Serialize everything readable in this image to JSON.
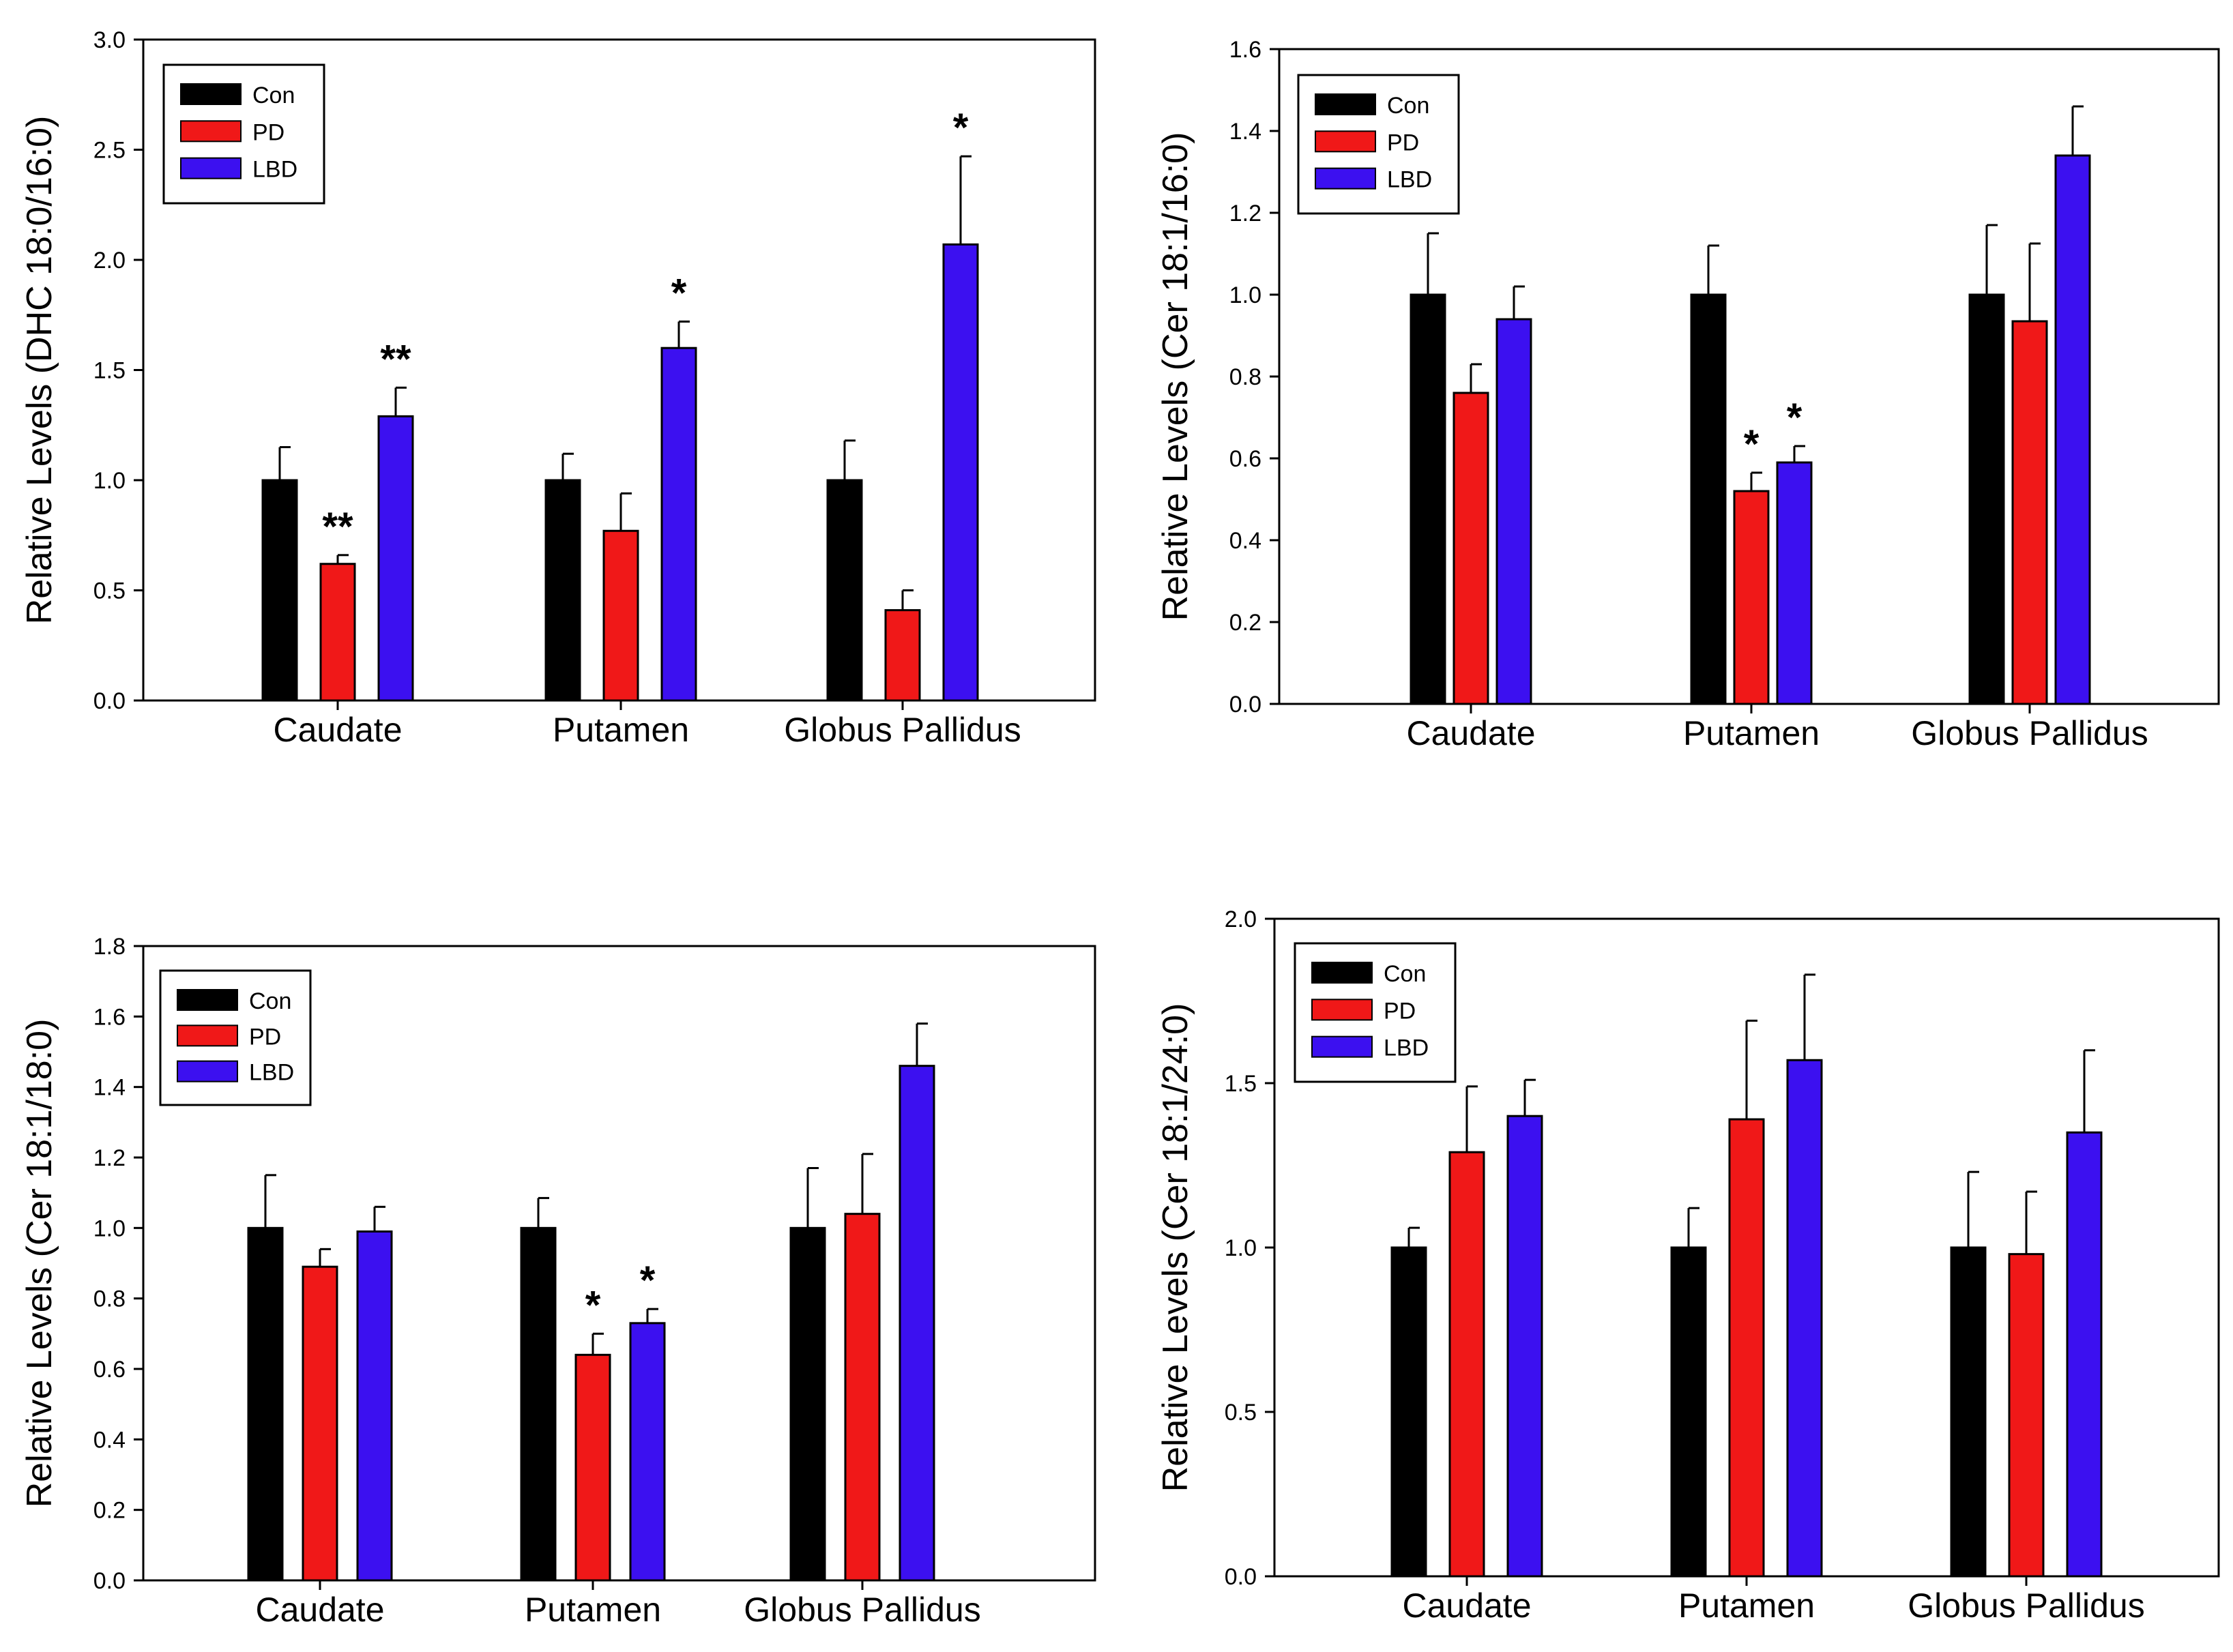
{
  "colors": {
    "Con": "#000000",
    "PD": "#f01818",
    "LBD": "#3c10f0",
    "axis": "#000000",
    "background": "#ffffff"
  },
  "chart_data": [
    {
      "type": "bar",
      "title": "",
      "xlabel": "",
      "ylabel": "Relative Levels (DHC 18:0/16:0)",
      "ylim": [
        0,
        3.0
      ],
      "yticks": [
        "0.0",
        "0.5",
        "1.0",
        "1.5",
        "2.0",
        "2.5",
        "3.0"
      ],
      "categories": [
        "Caudate",
        "Putamen",
        "Globus Pallidus"
      ],
      "legend": {
        "position": "top-left",
        "entries": [
          "Con",
          "PD",
          "LBD"
        ]
      },
      "series": [
        {
          "name": "Con",
          "values": [
            1.0,
            1.0,
            1.0
          ],
          "errors": [
            0.15,
            0.12,
            0.18
          ],
          "annotations": [
            "",
            "",
            ""
          ]
        },
        {
          "name": "PD",
          "values": [
            0.62,
            0.77,
            0.41
          ],
          "errors": [
            0.04,
            0.17,
            0.09
          ],
          "annotations": [
            "**",
            "",
            ""
          ]
        },
        {
          "name": "LBD",
          "values": [
            1.29,
            1.6,
            2.07
          ],
          "errors": [
            0.13,
            0.12,
            0.4
          ],
          "annotations": [
            "**",
            "*",
            "*"
          ]
        }
      ]
    },
    {
      "type": "bar",
      "title": "",
      "xlabel": "",
      "ylabel": "Relative Levels (Cer 18:1/16:0)",
      "ylim": [
        0,
        1.6
      ],
      "yticks": [
        "0.0",
        "0.2",
        "0.4",
        "0.6",
        "0.8",
        "1.0",
        "1.2",
        "1.4",
        "1.6"
      ],
      "categories": [
        "Caudate",
        "Putamen",
        "Globus Pallidus"
      ],
      "legend": {
        "position": "top-left",
        "entries": [
          "Con",
          "PD",
          "LBD"
        ]
      },
      "series": [
        {
          "name": "Con",
          "values": [
            1.0,
            1.0,
            1.0
          ],
          "errors": [
            0.15,
            0.12,
            0.17
          ],
          "annotations": [
            "",
            "",
            ""
          ]
        },
        {
          "name": "PD",
          "values": [
            0.76,
            0.52,
            0.935
          ],
          "errors": [
            0.07,
            0.045,
            0.19
          ],
          "annotations": [
            "",
            "*",
            ""
          ]
        },
        {
          "name": "LBD",
          "values": [
            0.94,
            0.59,
            1.34
          ],
          "errors": [
            0.08,
            0.04,
            0.12
          ],
          "annotations": [
            "",
            "*",
            ""
          ]
        }
      ]
    },
    {
      "type": "bar",
      "title": "",
      "xlabel": "",
      "ylabel": "Relative Levels (Cer 18:1/18:0)",
      "ylim": [
        0,
        1.8
      ],
      "yticks": [
        "0.0",
        "0.2",
        "0.4",
        "0.6",
        "0.8",
        "1.0",
        "1.2",
        "1.4",
        "1.6",
        "1.8"
      ],
      "categories": [
        "Caudate",
        "Putamen",
        "Globus Pallidus"
      ],
      "legend": {
        "position": "top-left",
        "entries": [
          "Con",
          "PD",
          "LBD"
        ]
      },
      "series": [
        {
          "name": "Con",
          "values": [
            1.0,
            1.0,
            1.0
          ],
          "errors": [
            0.15,
            0.085,
            0.17
          ],
          "annotations": [
            "",
            "",
            ""
          ]
        },
        {
          "name": "PD",
          "values": [
            0.89,
            0.64,
            1.04
          ],
          "errors": [
            0.05,
            0.06,
            0.17
          ],
          "annotations": [
            "",
            "*",
            ""
          ]
        },
        {
          "name": "LBD",
          "values": [
            0.99,
            0.73,
            1.46
          ],
          "errors": [
            0.07,
            0.04,
            0.12
          ],
          "annotations": [
            "",
            "*",
            ""
          ]
        }
      ]
    },
    {
      "type": "bar",
      "title": "",
      "xlabel": "",
      "ylabel": "Relative Levels (Cer 18:1/24:0)",
      "ylim": [
        0,
        2.0
      ],
      "yticks": [
        "0.0",
        "0.5",
        "1.0",
        "1.5",
        "2.0"
      ],
      "categories": [
        "Caudate",
        "Putamen",
        "Globus Pallidus"
      ],
      "legend": {
        "position": "top-left",
        "entries": [
          "Con",
          "PD",
          "LBD"
        ]
      },
      "series": [
        {
          "name": "Con",
          "values": [
            1.0,
            1.0,
            1.0
          ],
          "errors": [
            0.06,
            0.12,
            0.23
          ],
          "annotations": [
            "",
            "",
            ""
          ]
        },
        {
          "name": "PD",
          "values": [
            1.29,
            1.39,
            0.98
          ],
          "errors": [
            0.2,
            0.3,
            0.19
          ],
          "annotations": [
            "",
            "",
            ""
          ]
        },
        {
          "name": "LBD",
          "values": [
            1.4,
            1.57,
            1.35
          ],
          "errors": [
            0.11,
            0.26,
            0.25
          ],
          "annotations": [
            "",
            "",
            ""
          ]
        }
      ]
    }
  ]
}
